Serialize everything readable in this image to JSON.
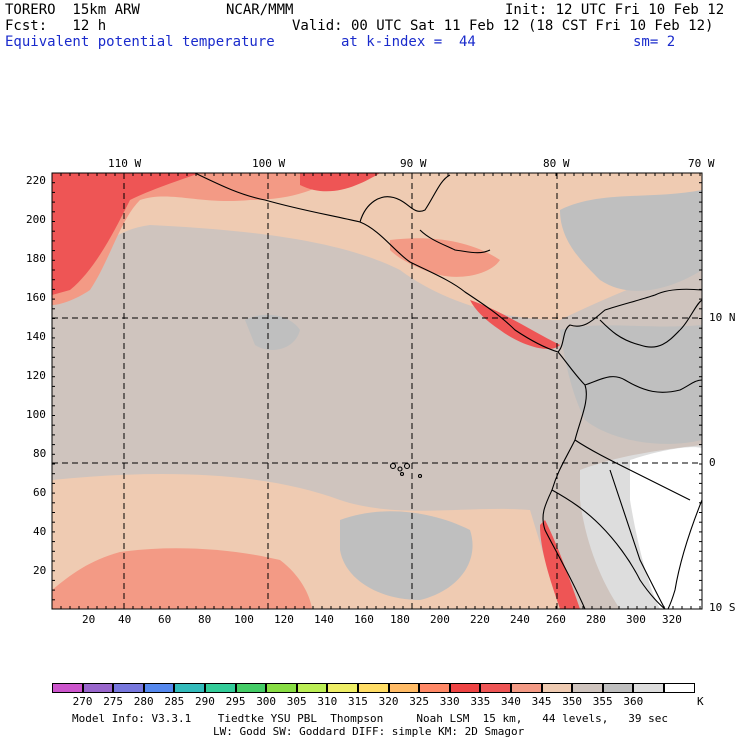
{
  "header": {
    "model": "TORERO  15km ARW",
    "org": "NCAR/MMM",
    "init": "Init: 12 UTC Fri 10 Feb 12",
    "fcst": "Fcst:   12 h",
    "valid": "Valid: 00 UTC Sat 11 Feb 12 (18 CST Fri 10 Feb 12)",
    "field": "Equivalent potential temperature",
    "level": "at k-index =  44",
    "smooth": "sm= 2"
  },
  "map": {
    "lon_labels": [
      "110 W",
      "100 W",
      "90 W",
      "80 W",
      "70 W"
    ],
    "lat_labels": [
      "10 N",
      "0",
      "10 S"
    ],
    "y_ticks": [
      "220",
      "200",
      "180",
      "160",
      "140",
      "120",
      "100",
      "80",
      "60",
      "40",
      "20"
    ],
    "x_ticks": [
      "20",
      "40",
      "60",
      "80",
      "100",
      "120",
      "140",
      "160",
      "180",
      "200",
      "220",
      "240",
      "260",
      "280",
      "300",
      "320"
    ]
  },
  "colorbar": {
    "labels": [
      "270",
      "275",
      "280",
      "285",
      "290",
      "295",
      "300",
      "305",
      "310",
      "315",
      "320",
      "325",
      "330",
      "335",
      "340",
      "345",
      "350",
      "355",
      "360"
    ],
    "unit": "K",
    "colors": [
      "#cc55cc",
      "#9966cc",
      "#7777dd",
      "#5588ee",
      "#33bbbb",
      "#33cc99",
      "#44cc66",
      "#88dd44",
      "#bbee55",
      "#eeee66",
      "#ffdd66",
      "#ffbb66",
      "#ff8866",
      "#ee4444",
      "#ee5555",
      "#f39a85",
      "#efcbb2",
      "#cfc4be",
      "#bfbfbf",
      "#dddddd",
      "#ffffff"
    ]
  },
  "footer": {
    "line1": "Model Info: V3.3.1    Tiedtke YSU PBL  Thompson     Noah LSM  15 km,   44 levels,   39 sec",
    "line2": "LW: Godd SW: Goddard DIFF: simple KM: 2D Smagor"
  }
}
